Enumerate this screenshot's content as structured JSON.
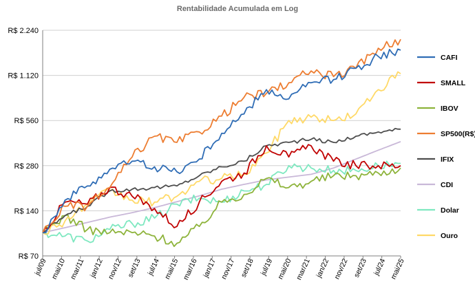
{
  "chart_data": {
    "type": "line",
    "title": "Rentabilidade Acumulada em Log",
    "xlabel": "",
    "ylabel": "",
    "y_scale": "log2",
    "ylim": [
      70,
      2240
    ],
    "yticks": [
      70,
      140,
      280,
      560,
      1120,
      2240
    ],
    "ytick_labels": [
      "R$ 70",
      "R$ 140",
      "R$ 280",
      "R$ 560",
      "R$ 1.120",
      "R$ 2.240"
    ],
    "x_start": "2009-07",
    "x_end": "2025-07",
    "x_tick_labels": [
      "jul/09",
      "mai/10",
      "mar/11",
      "jan/12",
      "nov/12",
      "set/13",
      "jul/14",
      "mai/15",
      "mar/16",
      "jan/17",
      "nov/17",
      "set/18",
      "jul/19",
      "mai/20",
      "mar/21",
      "jan/22",
      "nov/22",
      "set/23",
      "jul/24",
      "mai/25"
    ],
    "grid": true,
    "legend_position": "right",
    "x": [
      "2009-07",
      "2010-07",
      "2011-07",
      "2012-07",
      "2013-07",
      "2014-07",
      "2015-07",
      "2016-07",
      "2017-07",
      "2018-07",
      "2019-07",
      "2020-07",
      "2021-07",
      "2022-07",
      "2023-07",
      "2024-07",
      "2025-07"
    ],
    "series": [
      {
        "name": "CAFI",
        "color": "#2e6cb5",
        "values": [
          100,
          165,
          205,
          265,
          300,
          275,
          255,
          310,
          460,
          620,
          900,
          780,
          1000,
          1050,
          1250,
          1500,
          1650
        ]
      },
      {
        "name": "SMALL",
        "color": "#c00000",
        "values": [
          100,
          160,
          155,
          200,
          175,
          145,
          110,
          160,
          220,
          250,
          380,
          320,
          380,
          300,
          280,
          280,
          280
        ]
      },
      {
        "name": "IBOV",
        "color": "#8db33a",
        "values": [
          100,
          130,
          105,
          100,
          100,
          95,
          85,
          110,
          160,
          180,
          230,
          200,
          220,
          240,
          240,
          250,
          270
        ]
      },
      {
        "name": "SP500(R$)",
        "color": "#ed7d31",
        "values": [
          100,
          150,
          150,
          200,
          320,
          440,
          400,
          470,
          600,
          800,
          850,
          1000,
          1200,
          1100,
          1250,
          1700,
          1950
        ]
      },
      {
        "name": "IFIX",
        "color": "#4d4d4d",
        "values": [
          100,
          130,
          150,
          190,
          195,
          200,
          205,
          240,
          275,
          300,
          380,
          400,
          420,
          400,
          440,
          470,
          490
        ]
      },
      {
        "name": "CDI",
        "color": "#c9b8d8",
        "values": [
          100,
          108,
          117,
          127,
          136,
          147,
          161,
          176,
          195,
          210,
          225,
          235,
          245,
          270,
          310,
          355,
          405
        ]
      },
      {
        "name": "Dolar",
        "color": "#7ee8c0",
        "values": [
          100,
          95,
          88,
          105,
          115,
          125,
          155,
          170,
          160,
          190,
          210,
          280,
          270,
          260,
          260,
          280,
          290
        ]
      },
      {
        "name": "Ouro",
        "color": "#ffd966",
        "values": [
          100,
          120,
          155,
          190,
          165,
          160,
          175,
          220,
          230,
          245,
          340,
          560,
          590,
          560,
          620,
          900,
          1150
        ]
      }
    ]
  }
}
